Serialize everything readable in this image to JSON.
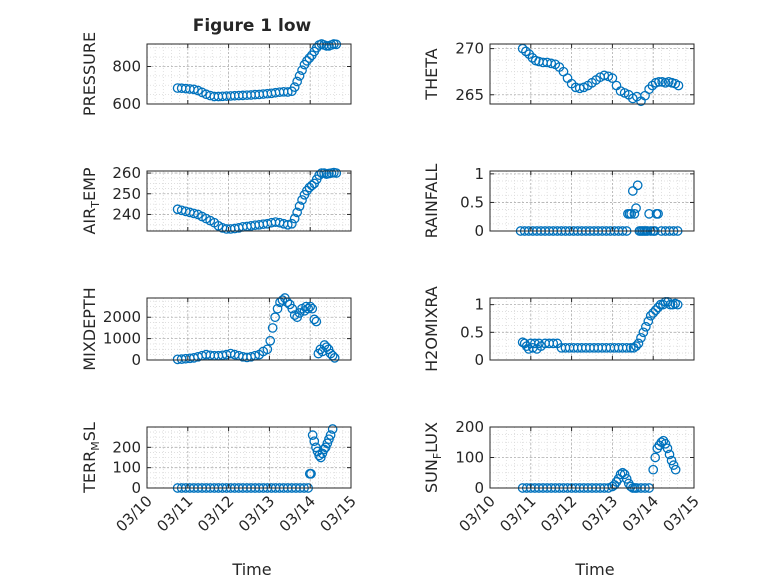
{
  "figure": {
    "title": "Figure 1 low",
    "xlabel_left": "Time",
    "xlabel_right": "Time",
    "x_ticks": [
      "03/10",
      "03/11",
      "03/12",
      "03/13",
      "03/14",
      "03/15"
    ]
  },
  "colors": {
    "marker": "#0072bd",
    "grid": "#b0b0b0",
    "axis": "#262626"
  },
  "chart_data": [
    {
      "type": "scatter",
      "name": "pressure",
      "ylabel": "PRESSURE",
      "xlim": [
        0,
        5
      ],
      "ylim": [
        600,
        920
      ],
      "yticks": [
        600,
        800
      ],
      "ytick_labels": [
        "600",
        "800"
      ],
      "x": [
        0.75,
        0.85,
        0.95,
        1.05,
        1.15,
        1.25,
        1.35,
        1.45,
        1.55,
        1.65,
        1.75,
        1.85,
        1.95,
        2.05,
        2.15,
        2.25,
        2.35,
        2.45,
        2.55,
        2.65,
        2.75,
        2.85,
        2.95,
        3.05,
        3.15,
        3.25,
        3.35,
        3.45,
        3.55,
        3.62,
        3.68,
        3.74,
        3.8,
        3.86,
        3.92,
        3.98,
        4.04,
        4.1,
        4.16,
        4.22,
        4.28,
        4.34,
        4.4,
        4.46,
        4.52,
        4.58,
        4.64
      ],
      "y": [
        685,
        684,
        682,
        680,
        678,
        672,
        662,
        652,
        645,
        640,
        640,
        641,
        642,
        643,
        644,
        645,
        646,
        647,
        648,
        650,
        651,
        653,
        655,
        657,
        660,
        663,
        665,
        664,
        668,
        690,
        720,
        750,
        780,
        810,
        830,
        845,
        860,
        880,
        900,
        915,
        920,
        915,
        910,
        910,
        915,
        920,
        918
      ]
    },
    {
      "type": "scatter",
      "name": "theta",
      "ylabel": "THETA",
      "xlim": [
        0,
        5
      ],
      "ylim": [
        264,
        270.5
      ],
      "yticks": [
        265,
        270
      ],
      "ytick_labels": [
        "265",
        "270"
      ],
      "x": [
        0.8,
        0.88,
        0.96,
        1.04,
        1.12,
        1.2,
        1.3,
        1.4,
        1.5,
        1.6,
        1.7,
        1.8,
        1.9,
        2.0,
        2.1,
        2.2,
        2.3,
        2.4,
        2.5,
        2.6,
        2.7,
        2.8,
        2.9,
        3.0,
        3.1,
        3.2,
        3.3,
        3.4,
        3.5,
        3.6,
        3.7,
        3.8,
        3.9,
        3.98,
        4.06,
        4.14,
        4.22,
        4.3,
        4.38,
        4.46,
        4.54,
        4.62
      ],
      "y": [
        270,
        269.7,
        269.4,
        269,
        268.7,
        268.6,
        268.5,
        268.5,
        268.4,
        268.3,
        268,
        267.5,
        266.8,
        266.2,
        265.8,
        265.7,
        265.8,
        266,
        266.3,
        266.6,
        266.9,
        267.1,
        267,
        266.8,
        266,
        265.4,
        265.2,
        265,
        264.6,
        264.8,
        264.3,
        264.9,
        265.6,
        266,
        266.3,
        266.4,
        266.4,
        266.3,
        266.4,
        266.3,
        266.2,
        266
      ]
    },
    {
      "type": "scatter",
      "name": "air_temp",
      "ylabel": "AIR_TEMP",
      "xlim": [
        0,
        5
      ],
      "ylim": [
        232,
        261
      ],
      "yticks": [
        240,
        250,
        260
      ],
      "ytick_labels": [
        "240",
        "250",
        "260"
      ],
      "x": [
        0.75,
        0.85,
        0.95,
        1.05,
        1.15,
        1.25,
        1.35,
        1.45,
        1.55,
        1.65,
        1.75,
        1.85,
        1.95,
        2.05,
        2.15,
        2.25,
        2.35,
        2.45,
        2.55,
        2.65,
        2.75,
        2.85,
        2.95,
        3.05,
        3.15,
        3.25,
        3.35,
        3.45,
        3.55,
        3.62,
        3.68,
        3.74,
        3.8,
        3.86,
        3.92,
        3.98,
        4.04,
        4.1,
        4.16,
        4.22,
        4.28,
        4.34,
        4.4,
        4.46,
        4.52,
        4.58,
        4.64
      ],
      "y": [
        242.5,
        242,
        241.5,
        241,
        240.5,
        240,
        239,
        238,
        237,
        236,
        234.5,
        233.5,
        233,
        233,
        233.2,
        233.5,
        234,
        234.2,
        234.5,
        234.8,
        235,
        235.3,
        235.5,
        236,
        236.3,
        236,
        235.5,
        235,
        235.5,
        238,
        241,
        244,
        247,
        249.5,
        251.5,
        253,
        254,
        255,
        257,
        259,
        260,
        260,
        259.5,
        259.8,
        260,
        260.2,
        260
      ]
    },
    {
      "type": "scatter",
      "name": "rainfall",
      "ylabel": "RAINFALL",
      "xlim": [
        0,
        5
      ],
      "ylim": [
        0,
        1.05
      ],
      "yticks": [
        0,
        0.5,
        1
      ],
      "ytick_labels": [
        "0",
        "0.5",
        "1"
      ],
      "x": [
        0.75,
        0.85,
        0.95,
        1.05,
        1.15,
        1.25,
        1.35,
        1.45,
        1.55,
        1.65,
        1.75,
        1.85,
        1.95,
        2.05,
        2.15,
        2.25,
        2.35,
        2.45,
        2.55,
        2.65,
        2.75,
        2.85,
        2.95,
        3.05,
        3.15,
        3.25,
        3.35,
        3.38,
        3.42,
        3.46,
        3.5,
        3.54,
        3.58,
        3.62,
        3.66,
        3.7,
        3.74,
        3.78,
        3.82,
        3.86,
        3.9,
        3.94,
        4.0,
        4.04,
        4.08,
        4.12,
        4.2,
        4.3,
        4.4,
        4.5,
        4.6
      ],
      "y": [
        0,
        0,
        0,
        0,
        0,
        0,
        0,
        0,
        0,
        0,
        0,
        0,
        0,
        0,
        0,
        0,
        0,
        0,
        0,
        0,
        0,
        0,
        0,
        0,
        0,
        0,
        0,
        0.3,
        0.3,
        0.3,
        0.7,
        0.3,
        0.4,
        0.8,
        0,
        0,
        0,
        0,
        0,
        0,
        0.3,
        0,
        0,
        0,
        0.3,
        0.3,
        0,
        0,
        0,
        0,
        0
      ]
    },
    {
      "type": "scatter",
      "name": "mixdepth",
      "ylabel": "MIXDEPTH",
      "xlim": [
        0,
        5
      ],
      "ylim": [
        0,
        2900
      ],
      "yticks": [
        0,
        1000,
        2000
      ],
      "ytick_labels": [
        "0",
        "1000",
        "2000"
      ],
      "x": [
        0.75,
        0.85,
        0.95,
        1.05,
        1.15,
        1.25,
        1.35,
        1.45,
        1.55,
        1.65,
        1.75,
        1.85,
        1.95,
        2.05,
        2.15,
        2.25,
        2.35,
        2.45,
        2.55,
        2.65,
        2.75,
        2.85,
        2.95,
        3.02,
        3.08,
        3.14,
        3.2,
        3.26,
        3.32,
        3.38,
        3.44,
        3.5,
        3.56,
        3.62,
        3.68,
        3.74,
        3.8,
        3.86,
        3.9,
        3.95,
        4.0,
        4.05,
        4.1,
        4.15,
        4.2,
        4.25,
        4.3,
        4.35,
        4.4,
        4.45,
        4.5,
        4.55,
        4.6
      ],
      "y": [
        30,
        40,
        60,
        80,
        100,
        150,
        200,
        250,
        220,
        200,
        200,
        220,
        250,
        300,
        250,
        200,
        150,
        120,
        150,
        200,
        250,
        400,
        500,
        900,
        1500,
        2000,
        2400,
        2700,
        2800,
        2900,
        2700,
        2600,
        2400,
        2100,
        2000,
        2200,
        2400,
        2300,
        2500,
        2400,
        2500,
        2400,
        1900,
        1800,
        300,
        500,
        400,
        700,
        600,
        500,
        300,
        200,
        100
      ]
    },
    {
      "type": "scatter",
      "name": "h2omixra",
      "ylabel": "H2OMIXRA",
      "xlim": [
        0,
        5
      ],
      "ylim": [
        0,
        1.12
      ],
      "yticks": [
        0,
        0.5,
        1
      ],
      "ytick_labels": [
        "0",
        "0.5",
        "1"
      ],
      "x": [
        0.8,
        0.85,
        0.9,
        0.95,
        1.0,
        1.05,
        1.1,
        1.15,
        1.2,
        1.25,
        1.35,
        1.45,
        1.55,
        1.65,
        1.75,
        1.85,
        1.95,
        2.05,
        2.15,
        2.25,
        2.35,
        2.45,
        2.55,
        2.65,
        2.75,
        2.85,
        2.95,
        3.05,
        3.15,
        3.25,
        3.35,
        3.45,
        3.52,
        3.58,
        3.64,
        3.7,
        3.76,
        3.82,
        3.88,
        3.94,
        4.0,
        4.06,
        4.12,
        4.18,
        4.24,
        4.3,
        4.36,
        4.42,
        4.48,
        4.54,
        4.6
      ],
      "y": [
        0.32,
        0.3,
        0.25,
        0.2,
        0.3,
        0.22,
        0.3,
        0.2,
        0.3,
        0.25,
        0.3,
        0.3,
        0.3,
        0.3,
        0.22,
        0.22,
        0.22,
        0.22,
        0.22,
        0.22,
        0.22,
        0.22,
        0.22,
        0.22,
        0.22,
        0.22,
        0.22,
        0.22,
        0.22,
        0.22,
        0.22,
        0.22,
        0.22,
        0.25,
        0.3,
        0.4,
        0.5,
        0.6,
        0.7,
        0.8,
        0.85,
        0.9,
        0.95,
        1.0,
        1.0,
        1.05,
        1.05,
        1.0,
        1.0,
        1.02,
        1.0
      ]
    },
    {
      "type": "scatter",
      "name": "terr_msl",
      "ylabel": "TERR_MSL",
      "xlim": [
        0,
        5
      ],
      "ylim": [
        0,
        300
      ],
      "yticks": [
        0,
        100,
        200
      ],
      "ytick_labels": [
        "0",
        "100",
        "200"
      ],
      "x": [
        0.75,
        0.85,
        0.95,
        1.05,
        1.15,
        1.25,
        1.35,
        1.45,
        1.55,
        1.65,
        1.75,
        1.85,
        1.95,
        2.05,
        2.15,
        2.25,
        2.35,
        2.45,
        2.55,
        2.65,
        2.75,
        2.85,
        2.95,
        3.05,
        3.15,
        3.25,
        3.35,
        3.45,
        3.55,
        3.65,
        3.75,
        3.85,
        3.95,
        3.99,
        4.02,
        4.06,
        4.1,
        4.14,
        4.18,
        4.22,
        4.26,
        4.3,
        4.34,
        4.38,
        4.42,
        4.46,
        4.5,
        4.55
      ],
      "y": [
        0,
        0,
        0,
        0,
        0,
        0,
        0,
        0,
        0,
        0,
        0,
        0,
        0,
        0,
        0,
        0,
        0,
        0,
        0,
        0,
        0,
        0,
        0,
        0,
        0,
        0,
        0,
        0,
        0,
        0,
        0,
        0,
        0,
        70,
        70,
        260,
        230,
        200,
        180,
        160,
        150,
        170,
        190,
        200,
        220,
        240,
        260,
        290
      ]
    },
    {
      "type": "scatter",
      "name": "sun_flux",
      "ylabel": "SUN_FLUX",
      "xlim": [
        0,
        5
      ],
      "ylim": [
        0,
        200
      ],
      "yticks": [
        0,
        100,
        200
      ],
      "ytick_labels": [
        "0",
        "100",
        "200"
      ],
      "x": [
        0.8,
        0.9,
        1.0,
        1.1,
        1.2,
        1.3,
        1.4,
        1.5,
        1.6,
        1.7,
        1.8,
        1.9,
        2.0,
        2.1,
        2.2,
        2.3,
        2.4,
        2.5,
        2.6,
        2.7,
        2.8,
        2.9,
        3.0,
        3.05,
        3.1,
        3.15,
        3.2,
        3.25,
        3.3,
        3.35,
        3.4,
        3.45,
        3.5,
        3.55,
        3.6,
        3.7,
        3.8,
        3.9,
        4.0,
        4.05,
        4.1,
        4.15,
        4.2,
        4.25,
        4.3,
        4.35,
        4.4,
        4.45,
        4.5,
        4.55
      ],
      "y": [
        0,
        0,
        0,
        0,
        0,
        0,
        0,
        0,
        0,
        0,
        0,
        0,
        0,
        0,
        0,
        0,
        0,
        0,
        0,
        0,
        0,
        0,
        5,
        10,
        20,
        30,
        45,
        50,
        45,
        30,
        15,
        5,
        0,
        0,
        0,
        0,
        0,
        0,
        60,
        100,
        130,
        140,
        150,
        155,
        145,
        130,
        110,
        90,
        75,
        60
      ]
    }
  ]
}
